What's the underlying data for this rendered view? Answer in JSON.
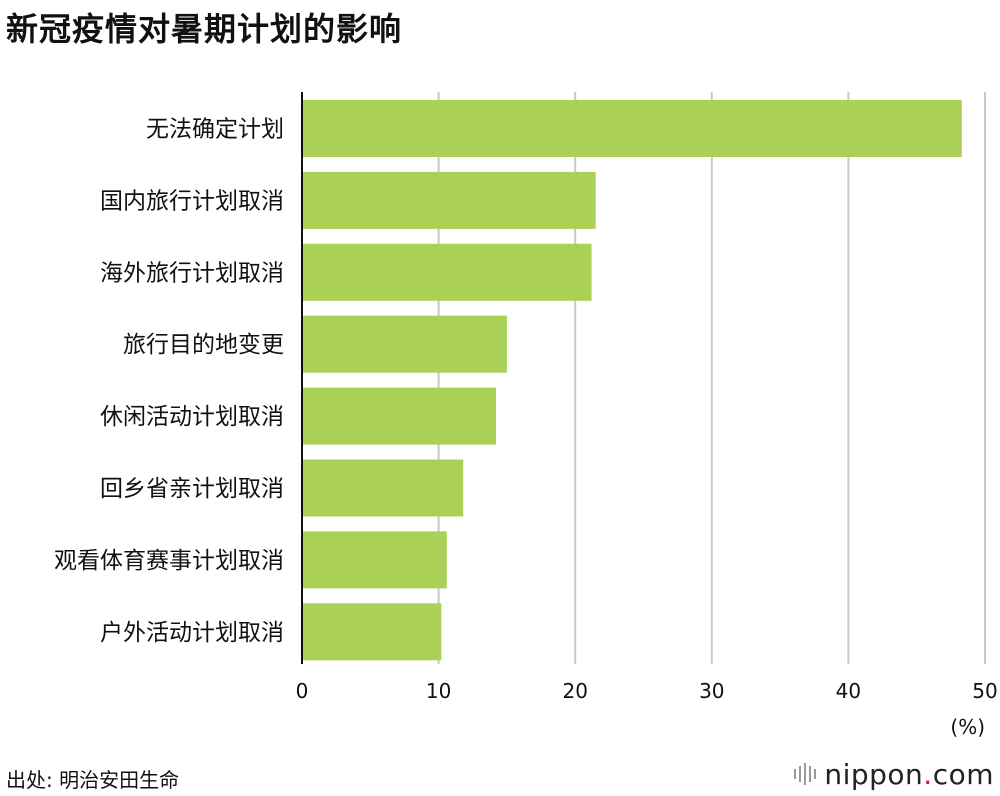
{
  "title": "新冠疫情对暑期计划的影响",
  "source_label": "出处: 明治安田生命",
  "logo": {
    "name": "nippon",
    "dot": ".",
    "tld": "com"
  },
  "colors": {
    "bar": "#aad056",
    "grid": "#c8c8c8",
    "axis": "#111111",
    "logo_dot": "#d7161d"
  },
  "chart_data": {
    "type": "bar",
    "orientation": "horizontal",
    "title": "新冠疫情对暑期计划的影响",
    "unit_label": "(%)",
    "categories": [
      "无法确定计划",
      "国内旅行计划取消",
      "海外旅行计划取消",
      "旅行目的地变更",
      "休闲活动计划取消",
      "回乡省亲计划取消",
      "观看体育赛事计划取消",
      "户外活动计划取消"
    ],
    "values": [
      48.3,
      21.5,
      21.2,
      15.0,
      14.2,
      11.8,
      10.6,
      10.2
    ],
    "xlim": [
      0,
      50
    ],
    "xticks": [
      0,
      10,
      20,
      30,
      40,
      50
    ],
    "grid": true,
    "legend": "none"
  }
}
